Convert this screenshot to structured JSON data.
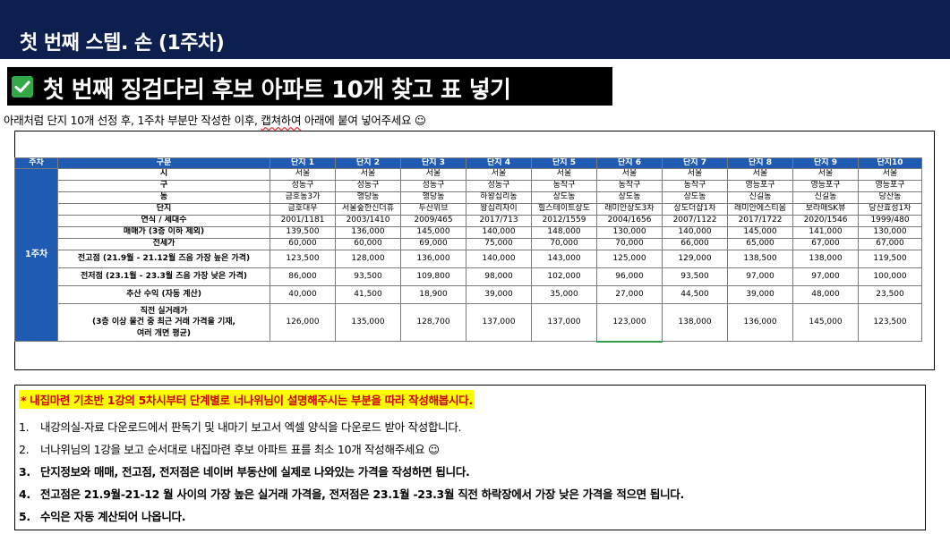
{
  "header": {
    "title": "첫 번째 스텝. 손 (1주차)"
  },
  "banner": {
    "title": "첫 번째 징검다리 후보 아파트 10개 찾고 표 넣기",
    "check_icon": "check-box-icon"
  },
  "instruction": {
    "before": "아래처럼 단지 10개 선정 후, 1주차 부분만 작성한 이후, ",
    "wavy": "캡쳐하여",
    "after": " 아래에 붙여 넣어주세요 ☺"
  },
  "table": {
    "headers": [
      "주차",
      "구분",
      "단지 1",
      "단지 2",
      "단지 3",
      "단지 4",
      "단지 5",
      "단지 6",
      "단지 7",
      "단지 8",
      "단지 9",
      "단지10"
    ],
    "week_label": "1주차",
    "rows": [
      {
        "label": "시",
        "values": [
          "서울",
          "서울",
          "서울",
          "서울",
          "서울",
          "서울",
          "서울",
          "서울",
          "서울",
          "서울"
        ]
      },
      {
        "label": "구",
        "values": [
          "성동구",
          "성동구",
          "성동구",
          "성동구",
          "동작구",
          "동작구",
          "동작구",
          "영등포구",
          "영등포구",
          "영등포구"
        ]
      },
      {
        "label": "동",
        "values": [
          "금호동3가",
          "행당동",
          "행당동",
          "하왕십리동",
          "상도동",
          "상도동",
          "상도동",
          "신길동",
          "신길동",
          "당산동"
        ]
      },
      {
        "label": "단지",
        "values": [
          "금호대우",
          "서울숲한신더휴",
          "두산위브",
          "왕십리자이",
          "힐스테이트상도",
          "래미안상도3차",
          "상도더샵1차",
          "래미안에스티움",
          "보라매SK뷰",
          "당산효성1차"
        ]
      },
      {
        "label": "연식 / 세대수",
        "values": [
          "2001/1181",
          "2003/1410",
          "2009/465",
          "2017/713",
          "2012/1559",
          "2004/1656",
          "2007/1122",
          "2017/1722",
          "2020/1546",
          "1999/480"
        ]
      },
      {
        "label": "매매가 (3층 이하 제외)",
        "values": [
          "139,500",
          "136,000",
          "145,000",
          "140,000",
          "148,000",
          "130,000",
          "140,000",
          "145,000",
          "141,000",
          "130,000"
        ]
      },
      {
        "label": "전세가",
        "values": [
          "60,000",
          "60,000",
          "69,000",
          "75,000",
          "70,000",
          "70,000",
          "66,000",
          "65,000",
          "67,000",
          "67,000"
        ]
      },
      {
        "label": "전고점 (21.9월 - 21.12월 즈음 가장 높은 가격)",
        "values": [
          "123,500",
          "128,000",
          "136,000",
          "140,000",
          "143,000",
          "125,000",
          "129,000",
          "138,500",
          "138,000",
          "119,500"
        ]
      },
      {
        "label": "전저점 (23.1월 - 23.3월 즈음 가장 낮은 가격)",
        "values": [
          "86,000",
          "93,500",
          "109,800",
          "98,000",
          "102,000",
          "96,000",
          "93,500",
          "97,000",
          "97,000",
          "100,000"
        ]
      },
      {
        "label": "추산 수익 (자동 계산)",
        "values": [
          "40,000",
          "41,500",
          "18,900",
          "39,000",
          "35,000",
          "27,000",
          "44,500",
          "39,000",
          "48,000",
          "23,500"
        ]
      },
      {
        "label_lines": [
          "직전 실거래가",
          "(3층 이상 물건 중 최근 거래 가격을 기재,",
          "여러 개면 평균)"
        ],
        "values": [
          "126,000",
          "135,000",
          "128,700",
          "137,000",
          "137,000",
          "123,000",
          "138,000",
          "136,000",
          "145,000",
          "123,500"
        ]
      }
    ]
  },
  "notes": {
    "highlight": "* 내집마련 기초반 1강의 5차시부터 단계별로 너나위님이 설명해주시는 부분을 따라 작성해봅시다.",
    "items": [
      {
        "num": "1.",
        "text": "내강의실-자료 다운로드에서 판독기 및 내마기 보고서 엑셀 양식을 다운로드 받아 작성합니다."
      },
      {
        "num": "2.",
        "text": "너나위님의 1강을 보고 순서대로 내집마련 후보 아파트 표를 최소 10개  작성해주세요 ☺"
      },
      {
        "num": "3.",
        "text": "단지정보와 매매,  전고점, 전저점은 네이버 부동산에 실제로 나와있는 가격을 작성하면 됩니다."
      },
      {
        "num": "4.",
        "text": "전고점은 21.9월-21-12 월 사이의 가장 높은 실거래 가격을, 전저점은 23.1월 -23.3월 직전 하락장에서 가장 낮은 가격을 적으면 됩니다."
      },
      {
        "num": "5.",
        "text": "수익은 자동 계산되어 나옵니다."
      }
    ]
  }
}
